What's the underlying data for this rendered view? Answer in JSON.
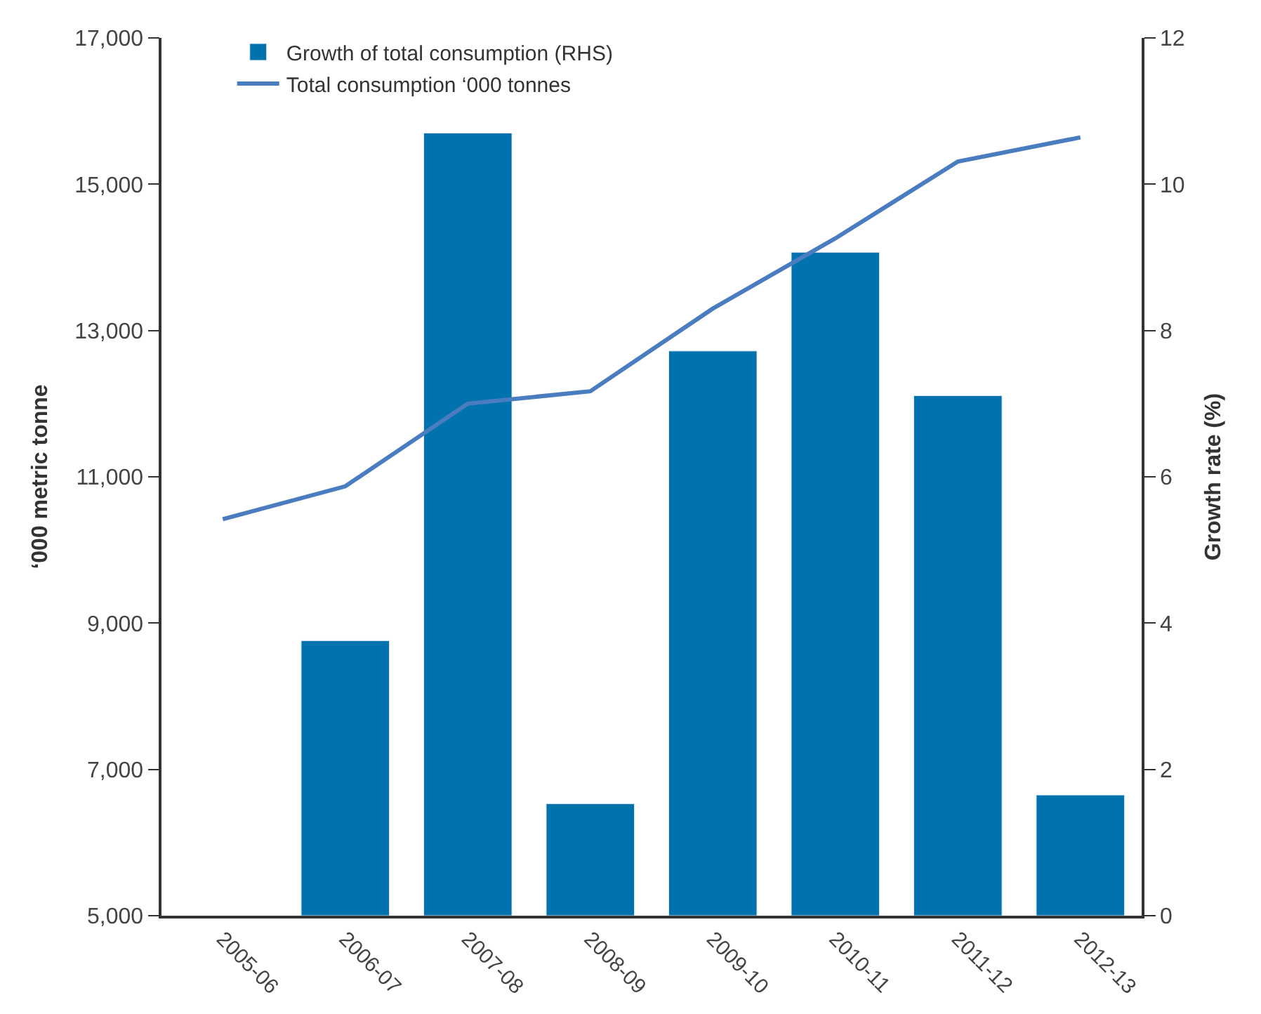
{
  "chart_data": {
    "type": "bar",
    "categories": [
      "2005-06",
      "2006-07",
      "2007-08",
      "2008-09",
      "2009-10",
      "2010-11",
      "2011-12",
      "2012-13"
    ],
    "series": [
      {
        "name": "Growth of total consumption (RHS)",
        "axis": "y2",
        "color": "#0073ae",
        "values": [
          null,
          3.76,
          10.7,
          1.53,
          7.72,
          9.07,
          7.11,
          1.65
        ]
      },
      {
        "name": "Total consumption ‘000 tonnes",
        "type": "line",
        "axis": "y",
        "color": "#4a7cc0",
        "values": [
          10420,
          10870,
          12000,
          12170,
          13300,
          14260,
          15310,
          15640
        ]
      }
    ],
    "ylabel": "‘000 metric tonne",
    "y2label": "Growth rate (%)",
    "ylim": [
      5000,
      17000
    ],
    "yticks": [
      {
        "value": 5000,
        "label": "5,000"
      },
      {
        "value": 7000,
        "label": "7,000"
      },
      {
        "value": 9000,
        "label": "9,000"
      },
      {
        "value": 11000,
        "label": "11,000"
      },
      {
        "value": 13000,
        "label": "13,000"
      },
      {
        "value": 15000,
        "label": "15,000"
      },
      {
        "value": 17000,
        "label": "17,000"
      }
    ],
    "y2lim": [
      0,
      12
    ],
    "y2ticks": [
      0,
      2,
      4,
      6,
      8,
      10,
      12
    ],
    "legend": "top left",
    "marker": "none",
    "line_style": "solid"
  }
}
